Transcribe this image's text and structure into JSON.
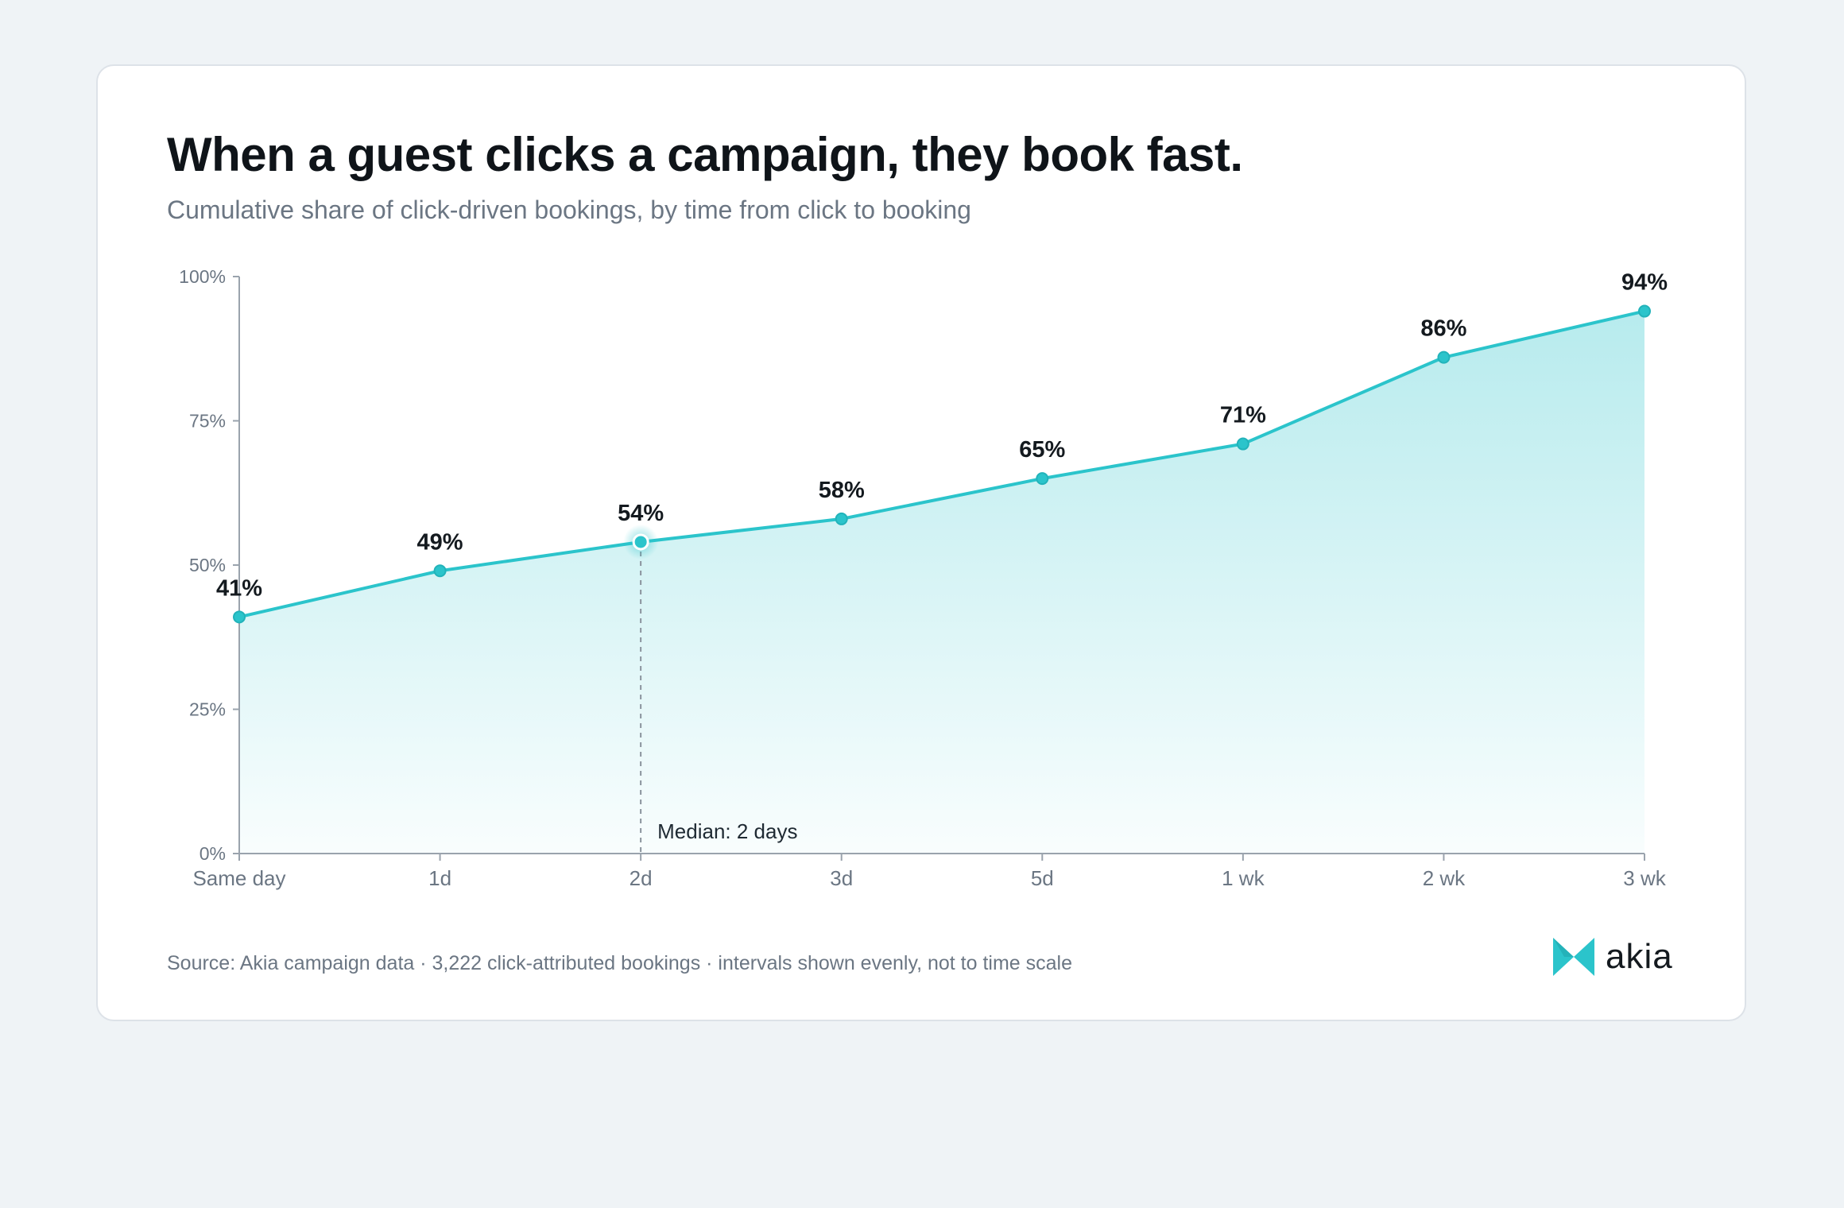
{
  "title": "When a guest clicks a campaign, they book fast.",
  "subtitle": "Cumulative share of click-driven bookings, by time from click to booking",
  "source": "Source: Akia campaign data · 3,222 click-attributed bookings · intervals shown evenly, not to time scale",
  "brand": {
    "name": "akia",
    "accent": "#2bc4cb",
    "accent_dark": "#22b3ba"
  },
  "chart_data": {
    "type": "area",
    "title": "When a guest clicks a campaign, they book fast.",
    "subtitle": "Cumulative share of click-driven bookings, by time from click to booking",
    "categories": [
      "Same day",
      "1d",
      "2d",
      "3d",
      "5d",
      "1 wk",
      "2 wk",
      "3 wk"
    ],
    "series": [
      {
        "values": [
          41,
          49,
          54,
          58,
          65,
          71,
          86,
          94
        ]
      }
    ],
    "value_labels": [
      "41%",
      "49%",
      "54%",
      "58%",
      "65%",
      "71%",
      "86%",
      "94%"
    ],
    "ylim": [
      0,
      100
    ],
    "yticks": [
      0,
      25,
      50,
      75,
      100
    ],
    "ytick_labels": [
      "0%",
      "25%",
      "50%",
      "75%",
      "100%"
    ],
    "xlabel": "",
    "ylabel": "",
    "grid": false,
    "legend": "none",
    "annotation": {
      "category": "2d",
      "value": 54,
      "text": "Median: 2 days"
    }
  }
}
